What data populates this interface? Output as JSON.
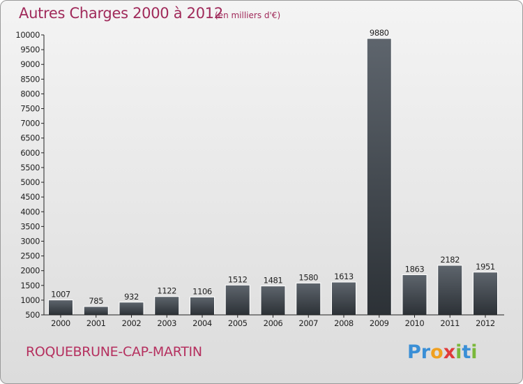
{
  "title": "Autres Charges 2000 à 2012",
  "subtitle": "(en milliers d'€)",
  "commune": "ROQUEBRUNE-CAP-MARTIN",
  "logo": {
    "text": "Proxiti",
    "letters": [
      {
        "ch": "P",
        "color": "#3a8fd6"
      },
      {
        "ch": "r",
        "color": "#3a8fd6"
      },
      {
        "ch": "o",
        "color": "#f0a020"
      },
      {
        "ch": "x",
        "color": "#e03a3a"
      },
      {
        "ch": "i",
        "color": "#7ab83a"
      },
      {
        "ch": "t",
        "color": "#3a8fd6"
      },
      {
        "ch": "i",
        "color": "#7ab83a"
      }
    ]
  },
  "colors": {
    "title": "#a02a5a",
    "bar_top": "#5e656d",
    "bar_bottom": "#2c3136",
    "axis": "#222222"
  },
  "chart_data": {
    "type": "bar",
    "title": "Autres Charges 2000 à 2012",
    "ylabel": "",
    "xlabel": "",
    "ylim": [
      500,
      10000
    ],
    "yticks": [
      500,
      1000,
      1500,
      2000,
      2500,
      3000,
      3500,
      4000,
      4500,
      5000,
      5500,
      6000,
      6500,
      7000,
      7500,
      8000,
      8500,
      9000,
      9500,
      10000
    ],
    "categories": [
      "2000",
      "2001",
      "2002",
      "2003",
      "2004",
      "2005",
      "2006",
      "2007",
      "2008",
      "2009",
      "2010",
      "2011",
      "2012"
    ],
    "values": [
      1007,
      785,
      932,
      1122,
      1106,
      1512,
      1481,
      1580,
      1613,
      9880,
      1863,
      2182,
      1951
    ],
    "grid": false,
    "legend": "none"
  }
}
